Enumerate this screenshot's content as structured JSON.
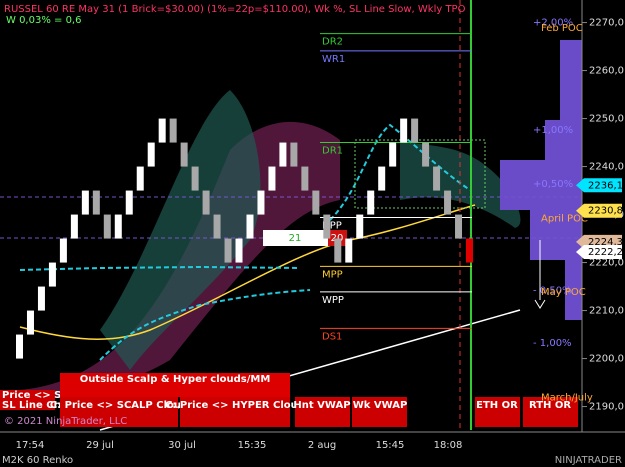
{
  "header": {
    "title": "RUSSEL 60 RE May 31 (1 Brick=$30.00) (1%=22p=$110.00), Wk %, SL Line Slow, Wkly TPO",
    "subtitle": "W 0,03% = 0,6"
  },
  "chart_data": {
    "type": "renko",
    "open": [
      2200,
      2205,
      2210,
      2215,
      2220,
      2225,
      2230,
      2235,
      2230,
      2225,
      2230,
      2235,
      2240,
      2245,
      2250,
      2245,
      2240,
      2235,
      2230,
      2225,
      2220,
      2225,
      2230,
      2235,
      2240,
      2245,
      2240,
      2235,
      2230,
      2225,
      2220,
      2225,
      2230,
      2235,
      2240,
      2245,
      2250,
      2245,
      2240,
      2235,
      2230,
      2225
    ],
    "close": [
      2205,
      2210,
      2215,
      2220,
      2225,
      2230,
      2235,
      2230,
      2225,
      2230,
      2235,
      2240,
      2245,
      2250,
      2245,
      2240,
      2235,
      2230,
      2225,
      2220,
      2225,
      2230,
      2235,
      2240,
      2245,
      2240,
      2235,
      2230,
      2225,
      2220,
      2225,
      2230,
      2235,
      2240,
      2245,
      2250,
      2245,
      2240,
      2235,
      2230,
      2225,
      2220
    ],
    "up_color": "#ffffff",
    "down_color": "#a8a8a8",
    "last_color": "#e00000",
    "ylim": [
      2184.7,
      2274.7
    ],
    "yticks": [
      {
        "value": 2190,
        "label": "2190,0"
      },
      {
        "value": 2200,
        "label": "2200,0"
      },
      {
        "value": 2210,
        "label": "2210,0"
      },
      {
        "value": 2220,
        "label": "2220,0"
      },
      {
        "value": 2230,
        "label": "2230,0"
      },
      {
        "value": 2240,
        "label": "2240,0"
      },
      {
        "value": 2250,
        "label": "2250,0"
      },
      {
        "value": 2260,
        "label": "2260,0"
      },
      {
        "value": 2270,
        "label": "2270,0"
      }
    ],
    "x_labels": [
      "17:54",
      "29 jul",
      "30 jul",
      "15:35",
      "2 aug",
      "15:45",
      "18:08"
    ],
    "price_markers": [
      {
        "value": 2236.1,
        "label": "2236,1",
        "color": "#00e5ff"
      },
      {
        "value": 2230.8,
        "label": "2230,8",
        "color": "#ffe14d"
      },
      {
        "value": 2224.3,
        "label": "2224,3",
        "color": "#e0b89a"
      },
      {
        "value": 2222.2,
        "label": "2222,2",
        "color": "#ffffff"
      }
    ],
    "levels": [
      {
        "value": 2267.7,
        "label": "DR2",
        "color": "#33cc33"
      },
      {
        "value": 2264.1,
        "label": "WR1",
        "color": "#7777ff"
      },
      {
        "value": 2245.0,
        "label": "DR1",
        "color": "#33cc33"
      },
      {
        "value": 2229.4,
        "label": "DPP",
        "color": "#ffffff"
      },
      {
        "value": 2219.2,
        "label": "MPP",
        "color": "#ffcc33"
      },
      {
        "value": 2213.9,
        "label": "WPP",
        "color": "#ffffff"
      },
      {
        "value": 2206.3,
        "label": "DS1",
        "color": "#ff4422"
      }
    ],
    "pct_labels": [
      {
        "value": 2270,
        "label": "+2,00%"
      },
      {
        "value": 2247.6,
        "label": "+1,00%"
      },
      {
        "value": 2236.4,
        "label": "+0,50%"
      },
      {
        "value": 2214.2,
        "label": "- 0,50%"
      },
      {
        "value": 2203.2,
        "label": "- 1,00%"
      }
    ],
    "poc_labels": [
      {
        "value": 2268.9,
        "label": "Feb POC"
      },
      {
        "value": 2229.2,
        "label": "April POC"
      },
      {
        "value": 2213.9,
        "label": "May POC"
      },
      {
        "value": 2191.9,
        "label": "March/July"
      }
    ]
  },
  "boxes": {
    "green": "21",
    "red": "20"
  },
  "buttons": [
    "Price <> Slow",
    "SL Line Cross",
    "Outside Scalp & Hyper clouds/MM",
    "C: Price <> SCALP Cloud",
    "C: Price <> HYPER Cloud",
    "Hnt VWAP",
    "Wk VWAP",
    "ETH OR",
    "RTH OR"
  ],
  "footer": {
    "copyright": "© 2021 NinjaTrader, LLC",
    "instrument": "M2K 60 Renko",
    "brand": "NINJATRADER"
  }
}
